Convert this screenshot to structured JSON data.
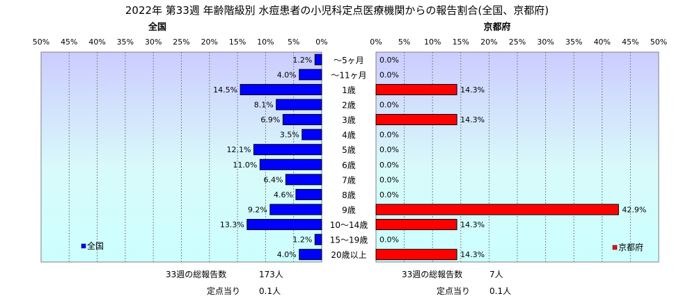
{
  "chart_data": {
    "type": "bar",
    "title": "2022年 第33週 年齢階級別 水痘患者の小児科定点医療機関からの報告割合(全国、京都府)",
    "categories": [
      "～5ヶ月",
      "～11ヶ月",
      "1歳",
      "2歳",
      "3歳",
      "4歳",
      "5歳",
      "6歳",
      "7歳",
      "8歳",
      "9歳",
      "10～14歳",
      "15～19歳",
      "20歳以上"
    ],
    "tick_labels": [
      "0%",
      "5%",
      "10%",
      "15%",
      "20%",
      "25%",
      "30%",
      "35%",
      "40%",
      "45%",
      "50%"
    ],
    "xlim": [
      0,
      50
    ],
    "grid": true,
    "panels": [
      {
        "title": "全国",
        "legend": "全国",
        "legend_position": "bottom-left",
        "color": "#0000ff",
        "values": [
          1.2,
          4.0,
          14.5,
          8.1,
          6.9,
          3.5,
          12.1,
          11.0,
          6.4,
          4.6,
          9.2,
          13.3,
          1.2,
          4.0
        ],
        "labels": [
          "1.2%",
          "4.0%",
          "14.5%",
          "8.1%",
          "6.9%",
          "3.5%",
          "12.1%",
          "11.0%",
          "6.4%",
          "4.6%",
          "9.2%",
          "13.3%",
          "1.2%",
          "4.0%"
        ]
      },
      {
        "title": "京都府",
        "legend": "京都府",
        "legend_position": "bottom-right",
        "color": "#ff0000",
        "values": [
          0.0,
          0.0,
          14.3,
          0.0,
          14.3,
          0.0,
          0.0,
          0.0,
          0.0,
          0.0,
          42.9,
          14.3,
          0.0,
          14.3
        ],
        "labels": [
          "0.0%",
          "0.0%",
          "14.3%",
          "0.0%",
          "14.3%",
          "0.0%",
          "0.0%",
          "0.0%",
          "0.0%",
          "0.0%",
          "42.9%",
          "14.3%",
          "0.0%",
          "14.3%"
        ]
      }
    ]
  },
  "footer": {
    "left": {
      "total_label": "33週の総報告数",
      "total_value": "173人",
      "per_label": "定点当り",
      "per_value": "0.1人"
    },
    "right": {
      "total_label": "33週の総報告数",
      "total_value": "7人",
      "per_label": "定点当り",
      "per_value": "0.1人"
    }
  }
}
